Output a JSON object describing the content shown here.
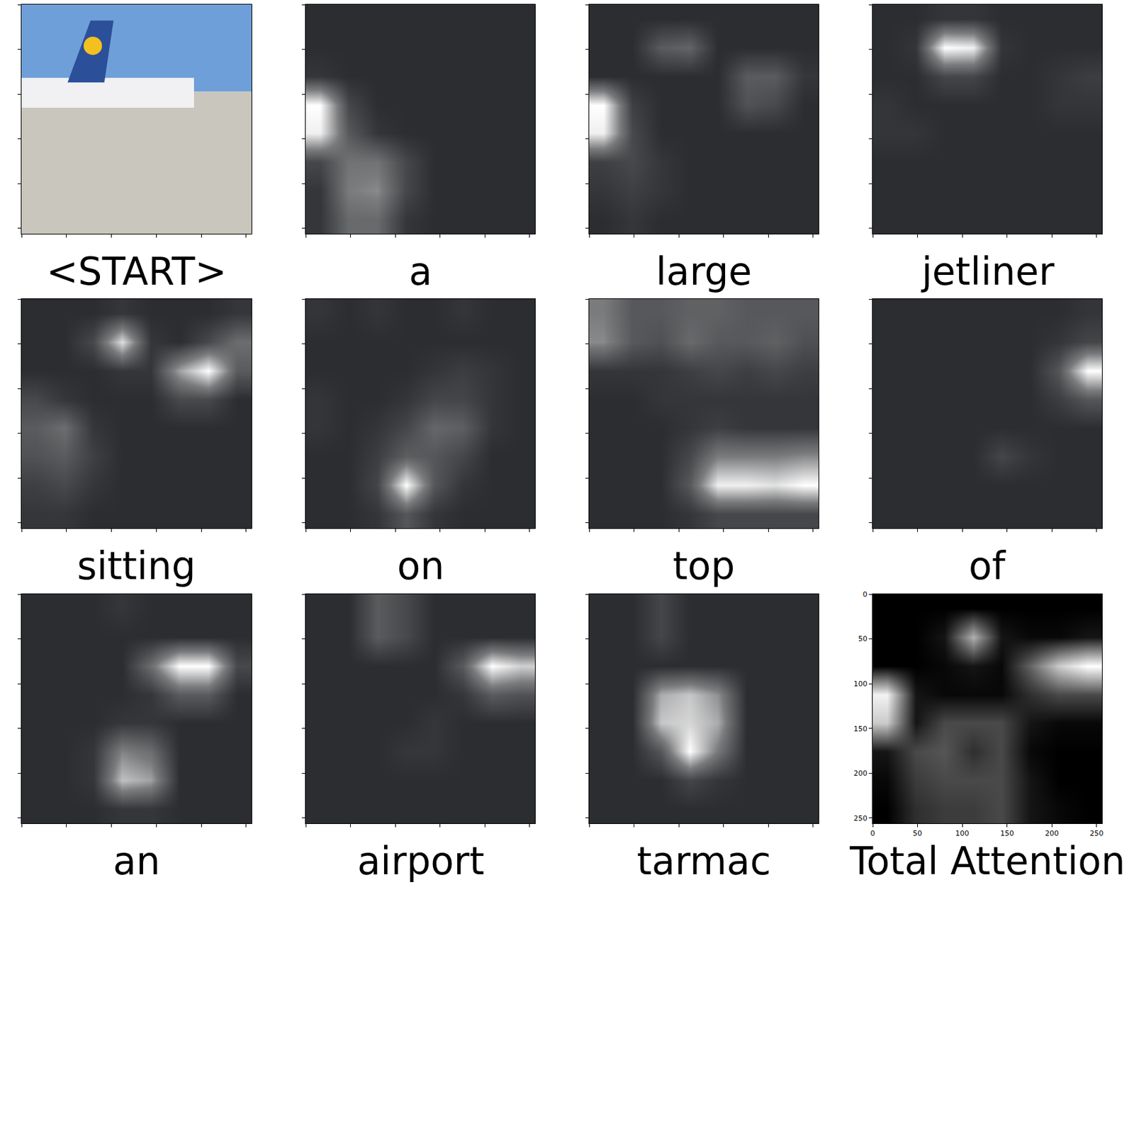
{
  "image_axes": {
    "xlim": [
      0,
      256
    ],
    "ylim": [
      256,
      0
    ],
    "xticks": [
      0,
      50,
      100,
      150,
      200,
      250
    ],
    "yticks": [
      0,
      50,
      100,
      150,
      200,
      250
    ],
    "tick_labels": false
  },
  "panels": [
    {
      "caption": "<START>",
      "attention": null
    },
    {
      "caption": "a",
      "attention": [
        [
          0.05,
          0.05,
          0.05,
          0.05,
          0.05,
          0.05,
          0.05,
          0.05
        ],
        [
          0.05,
          0.05,
          0.05,
          0.05,
          0.05,
          0.05,
          0.05,
          0.05
        ],
        [
          0.1,
          0.05,
          0.05,
          0.05,
          0.05,
          0.05,
          0.05,
          0.05
        ],
        [
          0.95,
          0.2,
          0.05,
          0.05,
          0.05,
          0.05,
          0.05,
          0.05
        ],
        [
          0.9,
          0.3,
          0.1,
          0.05,
          0.05,
          0.05,
          0.05,
          0.05
        ],
        [
          0.2,
          0.45,
          0.45,
          0.2,
          0.05,
          0.05,
          0.05,
          0.05
        ],
        [
          0.1,
          0.5,
          0.55,
          0.2,
          0.05,
          0.05,
          0.05,
          0.05
        ],
        [
          0.1,
          0.4,
          0.4,
          0.1,
          0.05,
          0.05,
          0.05,
          0.05
        ]
      ]
    },
    {
      "caption": "large",
      "attention": [
        [
          0.05,
          0.05,
          0.05,
          0.05,
          0.05,
          0.05,
          0.05,
          0.05
        ],
        [
          0.05,
          0.05,
          0.3,
          0.35,
          0.05,
          0.05,
          0.05,
          0.05
        ],
        [
          0.05,
          0.05,
          0.05,
          0.05,
          0.05,
          0.3,
          0.3,
          0.1
        ],
        [
          0.9,
          0.15,
          0.05,
          0.05,
          0.05,
          0.25,
          0.2,
          0.05
        ],
        [
          0.85,
          0.2,
          0.05,
          0.05,
          0.05,
          0.05,
          0.05,
          0.05
        ],
        [
          0.15,
          0.2,
          0.1,
          0.05,
          0.05,
          0.05,
          0.05,
          0.05
        ],
        [
          0.1,
          0.15,
          0.1,
          0.05,
          0.05,
          0.05,
          0.05,
          0.05
        ],
        [
          0.05,
          0.1,
          0.05,
          0.05,
          0.05,
          0.05,
          0.05,
          0.05
        ]
      ]
    },
    {
      "caption": "jetliner",
      "attention": [
        [
          0.05,
          0.05,
          0.1,
          0.1,
          0.05,
          0.05,
          0.05,
          0.05
        ],
        [
          0.05,
          0.1,
          1,
          0.95,
          0.1,
          0.05,
          0.05,
          0.05
        ],
        [
          0.05,
          0.05,
          0.2,
          0.2,
          0.05,
          0.05,
          0.1,
          0.15
        ],
        [
          0.1,
          0.05,
          0.05,
          0.05,
          0.05,
          0.05,
          0.1,
          0.1
        ],
        [
          0.1,
          0.1,
          0.05,
          0.05,
          0.05,
          0.05,
          0.05,
          0.05
        ],
        [
          0.05,
          0.05,
          0.05,
          0.05,
          0.05,
          0.05,
          0.05,
          0.05
        ],
        [
          0.05,
          0.05,
          0.05,
          0.05,
          0.05,
          0.05,
          0.05,
          0.05
        ],
        [
          0.05,
          0.05,
          0.05,
          0.05,
          0.05,
          0.05,
          0.05,
          0.05
        ]
      ]
    },
    {
      "caption": "sitting",
      "attention": [
        [
          0.05,
          0.05,
          0.05,
          0.1,
          0.05,
          0.05,
          0.05,
          0.1
        ],
        [
          0.05,
          0.05,
          0.2,
          0.8,
          0.1,
          0.05,
          0.2,
          0.4
        ],
        [
          0.05,
          0.05,
          0.05,
          0.1,
          0.1,
          0.6,
          0.9,
          0.3
        ],
        [
          0.2,
          0.1,
          0.05,
          0.05,
          0.05,
          0.2,
          0.2,
          0.05
        ],
        [
          0.3,
          0.4,
          0.1,
          0.05,
          0.05,
          0.05,
          0.05,
          0.05
        ],
        [
          0.25,
          0.3,
          0.15,
          0.05,
          0.05,
          0.05,
          0.05,
          0.05
        ],
        [
          0.15,
          0.2,
          0.1,
          0.05,
          0.05,
          0.05,
          0.05,
          0.05
        ],
        [
          0.1,
          0.1,
          0.05,
          0.05,
          0.05,
          0.05,
          0.05,
          0.05
        ]
      ]
    },
    {
      "caption": "on",
      "attention": [
        [
          0.1,
          0.05,
          0.1,
          0.05,
          0.05,
          0.1,
          0.05,
          0.05
        ],
        [
          0.05,
          0.05,
          0.05,
          0.05,
          0.05,
          0.05,
          0.05,
          0.05
        ],
        [
          0.05,
          0.05,
          0.05,
          0.05,
          0.1,
          0.15,
          0.1,
          0.05
        ],
        [
          0.1,
          0.05,
          0.05,
          0.1,
          0.2,
          0.2,
          0.1,
          0.05
        ],
        [
          0.1,
          0.05,
          0.1,
          0.2,
          0.4,
          0.35,
          0.1,
          0.05
        ],
        [
          0.05,
          0.05,
          0.15,
          0.35,
          0.3,
          0.2,
          0.05,
          0.05
        ],
        [
          0.05,
          0.05,
          0.2,
          1,
          0.3,
          0.1,
          0.05,
          0.05
        ],
        [
          0.05,
          0.05,
          0.1,
          0.3,
          0.1,
          0.05,
          0.05,
          0.05
        ]
      ]
    },
    {
      "caption": "top",
      "attention": [
        [
          0.5,
          0.3,
          0.3,
          0.35,
          0.35,
          0.3,
          0.3,
          0.3
        ],
        [
          0.55,
          0.3,
          0.25,
          0.4,
          0.3,
          0.3,
          0.35,
          0.25
        ],
        [
          0.1,
          0.1,
          0.1,
          0.15,
          0.2,
          0.15,
          0.2,
          0.15
        ],
        [
          0.05,
          0.05,
          0.1,
          0.1,
          0.1,
          0.1,
          0.1,
          0.1
        ],
        [
          0.05,
          0.05,
          0.05,
          0.1,
          0.15,
          0.1,
          0.1,
          0.1
        ],
        [
          0.05,
          0.05,
          0.05,
          0.2,
          0.5,
          0.5,
          0.5,
          0.55
        ],
        [
          0.05,
          0.05,
          0.05,
          0.3,
          0.9,
          0.9,
          0.85,
          0.95
        ],
        [
          0.05,
          0.05,
          0.05,
          0.1,
          0.2,
          0.2,
          0.2,
          0.2
        ]
      ]
    },
    {
      "caption": "of",
      "attention": [
        [
          0.05,
          0.05,
          0.05,
          0.05,
          0.05,
          0.05,
          0.05,
          0.1
        ],
        [
          0.05,
          0.05,
          0.05,
          0.05,
          0.05,
          0.05,
          0.1,
          0.2
        ],
        [
          0.05,
          0.05,
          0.05,
          0.05,
          0.05,
          0.05,
          0.3,
          1
        ],
        [
          0.05,
          0.05,
          0.05,
          0.05,
          0.05,
          0.05,
          0.15,
          0.3
        ],
        [
          0.05,
          0.05,
          0.05,
          0.05,
          0.05,
          0.05,
          0.05,
          0.05
        ],
        [
          0.05,
          0.05,
          0.05,
          0.05,
          0.2,
          0.1,
          0.05,
          0.05
        ],
        [
          0.05,
          0.05,
          0.05,
          0.05,
          0.05,
          0.05,
          0.05,
          0.05
        ],
        [
          0.05,
          0.05,
          0.05,
          0.05,
          0.05,
          0.05,
          0.05,
          0.05
        ]
      ]
    },
    {
      "caption": "an",
      "attention": [
        [
          0.05,
          0.05,
          0.05,
          0.1,
          0.05,
          0.05,
          0.05,
          0.05
        ],
        [
          0.05,
          0.05,
          0.05,
          0.05,
          0.05,
          0.05,
          0.05,
          0.05
        ],
        [
          0.05,
          0.05,
          0.05,
          0.05,
          0.4,
          0.9,
          0.9,
          0.2
        ],
        [
          0.05,
          0.05,
          0.05,
          0.05,
          0.1,
          0.3,
          0.3,
          0.05
        ],
        [
          0.05,
          0.05,
          0.05,
          0.1,
          0.1,
          0.05,
          0.05,
          0.05
        ],
        [
          0.05,
          0.05,
          0.1,
          0.5,
          0.4,
          0.05,
          0.05,
          0.05
        ],
        [
          0.05,
          0.05,
          0.1,
          0.7,
          0.6,
          0.05,
          0.05,
          0.05
        ],
        [
          0.05,
          0.05,
          0.05,
          0.1,
          0.1,
          0.05,
          0.05,
          0.05
        ]
      ]
    },
    {
      "caption": "airport",
      "attention": [
        [
          0.05,
          0.05,
          0.3,
          0.2,
          0.05,
          0.05,
          0.05,
          0.05
        ],
        [
          0.05,
          0.05,
          0.3,
          0.2,
          0.05,
          0.05,
          0.05,
          0.05
        ],
        [
          0.05,
          0.05,
          0.05,
          0.05,
          0.05,
          0.3,
          0.9,
          0.75
        ],
        [
          0.05,
          0.05,
          0.05,
          0.05,
          0.05,
          0.1,
          0.3,
          0.25
        ],
        [
          0.05,
          0.05,
          0.05,
          0.05,
          0.1,
          0.05,
          0.05,
          0.05
        ],
        [
          0.05,
          0.05,
          0.05,
          0.1,
          0.1,
          0.05,
          0.05,
          0.05
        ],
        [
          0.05,
          0.05,
          0.05,
          0.05,
          0.05,
          0.05,
          0.05,
          0.05
        ],
        [
          0.05,
          0.05,
          0.05,
          0.05,
          0.05,
          0.05,
          0.05,
          0.05
        ]
      ]
    },
    {
      "caption": "tarmac",
      "attention": [
        [
          0.05,
          0.05,
          0.2,
          0.05,
          0.05,
          0.05,
          0.05,
          0.05
        ],
        [
          0.05,
          0.05,
          0.2,
          0.05,
          0.05,
          0.05,
          0.05,
          0.05
        ],
        [
          0.05,
          0.05,
          0.05,
          0.05,
          0.05,
          0.05,
          0.05,
          0.05
        ],
        [
          0.05,
          0.05,
          0.7,
          0.8,
          0.6,
          0.05,
          0.05,
          0.05
        ],
        [
          0.05,
          0.05,
          0.8,
          0.85,
          0.7,
          0.05,
          0.05,
          0.05
        ],
        [
          0.05,
          0.05,
          0.3,
          1,
          0.5,
          0.05,
          0.05,
          0.05
        ],
        [
          0.05,
          0.05,
          0.05,
          0.2,
          0.1,
          0.05,
          0.05,
          0.05
        ],
        [
          0.05,
          0.05,
          0.05,
          0.05,
          0.05,
          0.05,
          0.05,
          0.05
        ]
      ]
    }
  ],
  "chart_data": {
    "type": "heatmap",
    "title": "Total Attention",
    "xlim": [
      0,
      256
    ],
    "ylim": [
      256,
      0
    ],
    "xticks": [
      0,
      50,
      100,
      150,
      200,
      250
    ],
    "yticks": [
      0,
      50,
      100,
      150,
      200,
      250
    ],
    "cells": [
      [
        0.02,
        0.02,
        0.02,
        0.02,
        0.02,
        0.02,
        0.02,
        0.02
      ],
      [
        0.02,
        0.02,
        0.1,
        0.7,
        0.1,
        0.05,
        0.05,
        0.1
      ],
      [
        0.02,
        0.02,
        0.05,
        0.1,
        0.05,
        0.4,
        0.8,
        1
      ],
      [
        0.95,
        0.1,
        0.05,
        0.05,
        0.05,
        0.2,
        0.3,
        0.3
      ],
      [
        0.8,
        0.1,
        0.3,
        0.3,
        0.3,
        0.1,
        0.05,
        0.05
      ],
      [
        0.1,
        0.3,
        0.35,
        0.2,
        0.3,
        0.05,
        0.02,
        0.02
      ],
      [
        0.05,
        0.25,
        0.3,
        0.3,
        0.3,
        0.1,
        0.02,
        0.02
      ],
      [
        0.02,
        0.2,
        0.25,
        0.25,
        0.3,
        0.1,
        0.05,
        0.02
      ]
    ]
  }
}
